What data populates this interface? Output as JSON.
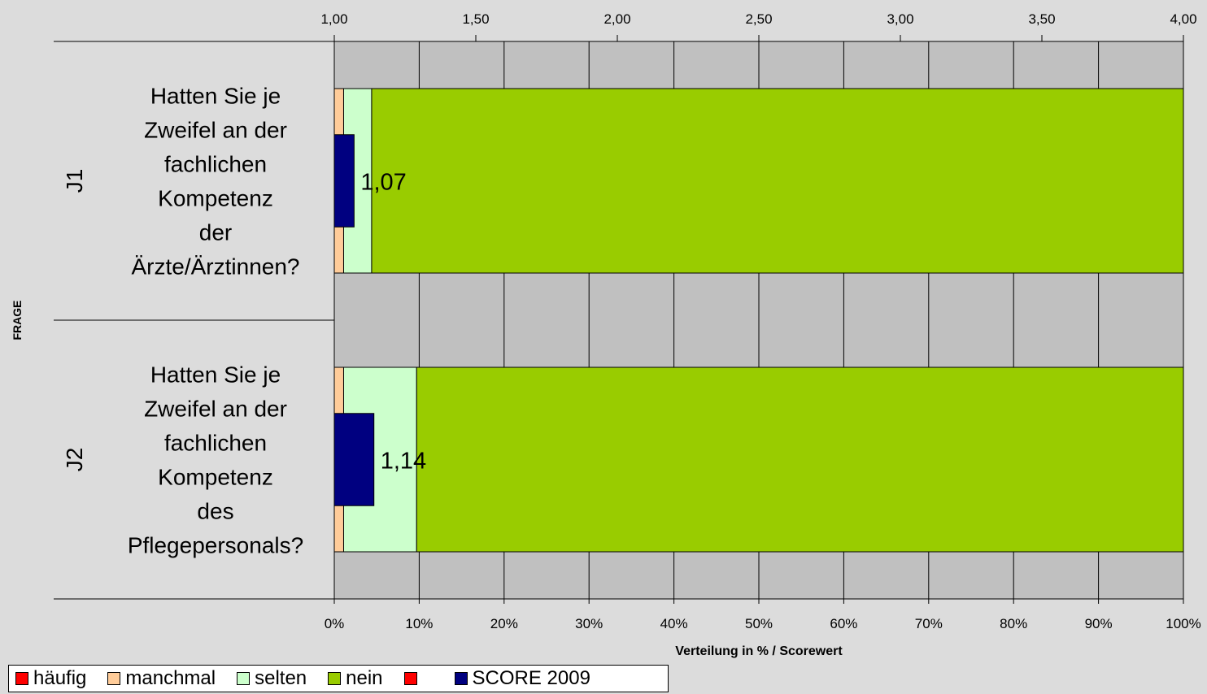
{
  "chart_data": {
    "type": "bar",
    "orientation": "horizontal",
    "stacked": true,
    "title": "",
    "ylabel": "FRAGE",
    "xlabel": "Verteilung in % / Scorewert",
    "x_bottom_range": [
      0,
      100
    ],
    "x_bottom_ticks": [
      "0%",
      "10%",
      "20%",
      "30%",
      "40%",
      "50%",
      "60%",
      "70%",
      "80%",
      "90%",
      "100%"
    ],
    "x_top_range": [
      1.0,
      4.0
    ],
    "x_top_ticks": [
      "1,00",
      "1,50",
      "2,00",
      "2,50",
      "3,00",
      "3,50",
      "4,00"
    ],
    "grid": true,
    "legend_position": "bottom-left",
    "categories": [
      {
        "code": "J1",
        "question": [
          "Hatten Sie je",
          "Zweifel an der",
          "fachlichen",
          "Kompetenz",
          "der",
          "Ärzte/Ärztinnen?"
        ]
      },
      {
        "code": "J2",
        "question": [
          "Hatten Sie je",
          "Zweifel an der",
          "fachlichen",
          "Kompetenz",
          "des",
          "Pflegepersonals?"
        ]
      }
    ],
    "series": [
      {
        "name": "häufig",
        "color": "#ff0000",
        "values": [
          0,
          0
        ]
      },
      {
        "name": "manchmal",
        "color": "#ffcc99",
        "values": [
          1.1,
          1.1
        ]
      },
      {
        "name": "selten",
        "color": "#ccffcc",
        "values": [
          3.3,
          8.6
        ]
      },
      {
        "name": "nein",
        "color": "#99cc00",
        "values": [
          95.6,
          90.3
        ]
      },
      {
        "name": "",
        "color": "#ff0000",
        "values": [
          0,
          0
        ]
      }
    ],
    "score": {
      "name": "SCORE 2009",
      "color": "#000080",
      "values": [
        1.07,
        1.14
      ],
      "labels": [
        "1,07",
        "1,14"
      ]
    }
  }
}
